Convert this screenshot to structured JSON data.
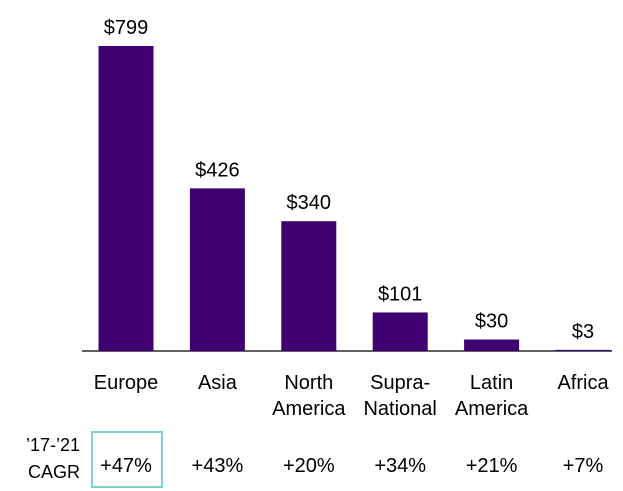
{
  "chart_data": {
    "type": "bar",
    "categories": [
      "Europe",
      "Asia",
      "North America",
      "Supra-National",
      "Latin America",
      "Africa"
    ],
    "values": [
      799,
      426,
      340,
      101,
      30,
      3
    ],
    "value_labels": [
      "$799",
      "$426",
      "$340",
      "$101",
      "$30",
      "$3"
    ],
    "color": "#3f0071",
    "cagr": {
      "label": "’17-’21 CAGR",
      "values": [
        47,
        43,
        20,
        34,
        21,
        7
      ],
      "value_labels": [
        "+47%",
        "+43%",
        "+20%",
        "+34%",
        "+21%",
        "+7%"
      ]
    }
  }
}
